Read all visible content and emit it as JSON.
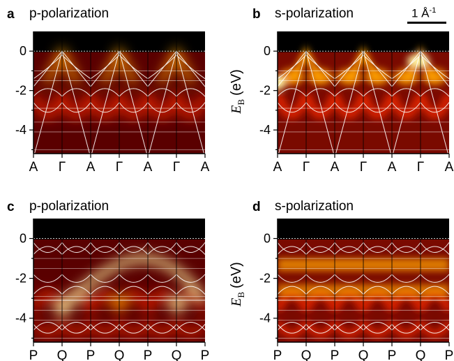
{
  "panels": [
    {
      "letter": "a",
      "title": "p-polarization"
    },
    {
      "letter": "b",
      "title": "s-polarization"
    },
    {
      "letter": "c",
      "title": "p-polarization"
    },
    {
      "letter": "d",
      "title": "s-polarization"
    }
  ],
  "scalebar": {
    "label": "1 Å",
    "exponent": "-1"
  },
  "ylabel": {
    "symbol": "E",
    "subscript": "B",
    "unit": "(eV)"
  },
  "colors": {
    "background": "#000000",
    "low": "#5a0000",
    "mid": "#d62000",
    "high": "#ffa000",
    "peak": "#fff2a0",
    "bands": "#ffffff"
  },
  "chart_data": [
    {
      "type": "heatmap",
      "panel": "a",
      "title": "p-polarization",
      "colormap": "hot",
      "x_ticks": [
        "A",
        "Γ",
        "A",
        "Γ",
        "A",
        "Γ",
        "A"
      ],
      "y_ticks": [
        0,
        -2,
        -4
      ],
      "ylim": [
        -5.2,
        1.0
      ],
      "ylabel": ""
    },
    {
      "type": "heatmap",
      "panel": "b",
      "title": "s-polarization",
      "colormap": "hot",
      "x_ticks": [
        "A",
        "Γ",
        "A",
        "Γ",
        "A",
        "Γ",
        "A"
      ],
      "y_ticks": [
        0,
        -2,
        -4
      ],
      "ylim": [
        -5.2,
        1.0
      ],
      "ylabel": "E_B (eV)"
    },
    {
      "type": "heatmap",
      "panel": "c",
      "title": "p-polarization",
      "colormap": "hot",
      "x_ticks": [
        "P",
        "Q",
        "P",
        "Q",
        "P",
        "Q",
        "P"
      ],
      "y_ticks": [
        0,
        -2,
        -4
      ],
      "ylim": [
        -5.2,
        1.0
      ],
      "ylabel": ""
    },
    {
      "type": "heatmap",
      "panel": "d",
      "title": "s-polarization",
      "colormap": "hot",
      "x_ticks": [
        "P",
        "Q",
        "P",
        "Q",
        "P",
        "Q",
        "P"
      ],
      "y_ticks": [
        0,
        -2,
        -4
      ],
      "ylim": [
        -5.2,
        1.0
      ],
      "ylabel": "E_B (eV)"
    }
  ]
}
